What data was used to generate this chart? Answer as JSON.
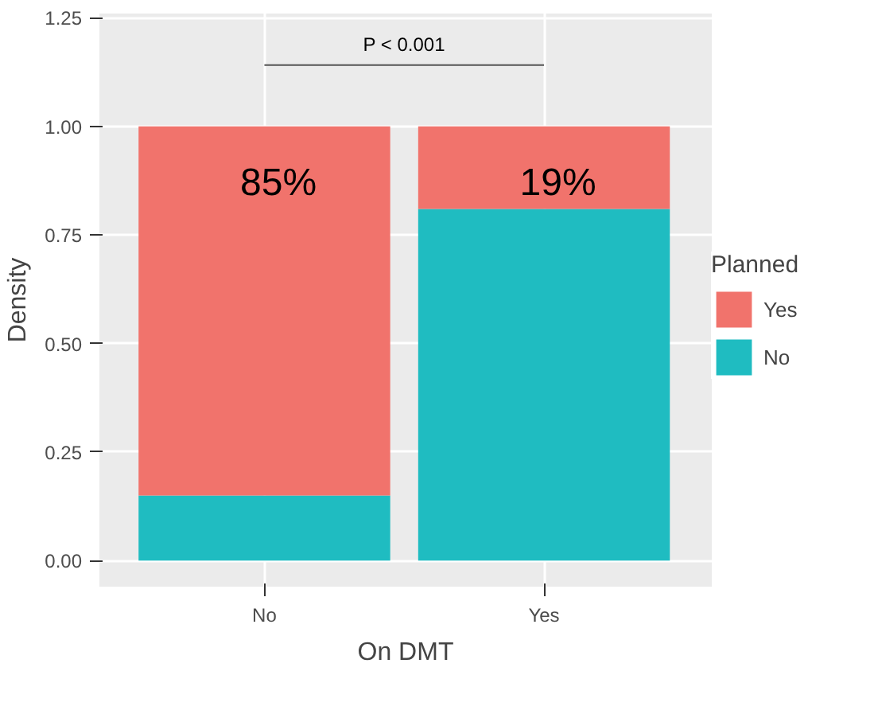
{
  "chart_data": {
    "type": "bar",
    "stacked": true,
    "xlabel": "On DMT",
    "ylabel": "Density",
    "legend_title": "Planned",
    "legend": "right",
    "grid": true,
    "categories": [
      "No",
      "Yes"
    ],
    "series": [
      {
        "name": "No",
        "color": "#1fbcc1",
        "values": [
          0.15,
          0.81
        ]
      },
      {
        "name": "Yes",
        "color": "#f1736c",
        "values": [
          0.85,
          0.19
        ],
        "value_labels": [
          "85%",
          "19%"
        ]
      }
    ],
    "ylim": [
      -0.06,
      1.26
    ],
    "yticks": [
      {
        "value": 0,
        "label": "0.00"
      },
      {
        "value": 0.25,
        "label": "0.25"
      },
      {
        "value": 0.5,
        "label": "0.50"
      },
      {
        "value": 0.75,
        "label": "0.75"
      },
      {
        "value": 1,
        "label": "1.00"
      },
      {
        "value": 1.25,
        "label": "1.25"
      }
    ],
    "annotations": [
      "P < 0.001"
    ]
  }
}
